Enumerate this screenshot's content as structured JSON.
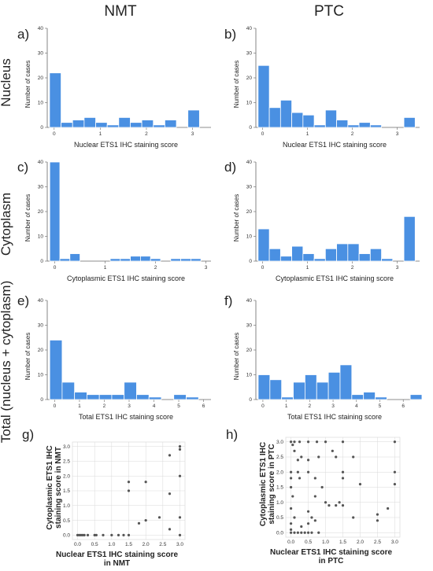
{
  "column_titles": [
    "NMT",
    "PTC"
  ],
  "row_titles": [
    "Nucleus",
    "Cytoplasm",
    "Total (nucleus + cytoplasm)"
  ],
  "colors": {
    "bar": "#4A90E2",
    "bar_edge": "#ffffff",
    "point": "#555555",
    "grid": "#d9d9d9",
    "axis": "#666666"
  },
  "chart_data": [
    {
      "panel": "a)",
      "type": "bar",
      "xlabel": "Nuclear ETS1 IHC staining score",
      "ylabel": "Number of cases",
      "xlim": [
        -0.15,
        3.4
      ],
      "ylim": [
        0,
        40
      ],
      "xticks": [
        0,
        1,
        2,
        3
      ],
      "yticks": [
        0,
        10,
        20,
        30,
        40
      ],
      "bin_start": -0.1,
      "bin_width": 0.25,
      "values": [
        22,
        2,
        3,
        4,
        2,
        1,
        4,
        2,
        3,
        1,
        3,
        0,
        7
      ]
    },
    {
      "panel": "b)",
      "type": "bar",
      "xlabel": "Nuclear ETS1 IHC staining score",
      "ylabel": "Number of cases",
      "xlim": [
        -0.15,
        3.5
      ],
      "ylim": [
        0,
        40
      ],
      "xticks": [
        0,
        1,
        2,
        3
      ],
      "yticks": [
        0,
        10,
        20,
        30,
        40
      ],
      "bin_start": -0.1,
      "bin_width": 0.25,
      "values": [
        25,
        8,
        11,
        6,
        5,
        1,
        7,
        3,
        1,
        2,
        1,
        0,
        0,
        4
      ]
    },
    {
      "panel": "c)",
      "type": "bar",
      "xlabel": "Cytoplasmic ETS1 IHC staining score",
      "ylabel": "Number of cases",
      "xlim": [
        -0.15,
        3.1
      ],
      "ylim": [
        0,
        40
      ],
      "xticks": [
        0,
        1,
        2,
        3
      ],
      "yticks": [
        0,
        10,
        20,
        30,
        40
      ],
      "bin_start": -0.1,
      "bin_width": 0.2,
      "values": [
        40,
        1,
        3,
        0,
        0,
        0,
        1,
        1,
        2,
        2,
        1,
        0,
        1,
        1,
        1
      ]
    },
    {
      "panel": "d)",
      "type": "bar",
      "xlabel": "Cytoplasmic ETS1 IHC staining score",
      "ylabel": "Number of cases",
      "xlim": [
        -0.15,
        3.5
      ],
      "ylim": [
        0,
        40
      ],
      "xticks": [
        0,
        1,
        2,
        3
      ],
      "yticks": [
        0,
        10,
        20,
        30,
        40
      ],
      "bin_start": -0.1,
      "bin_width": 0.25,
      "values": [
        13,
        5,
        2,
        6,
        3,
        1,
        5,
        7,
        7,
        3,
        5,
        1,
        0,
        18
      ]
    },
    {
      "panel": "e)",
      "type": "bar",
      "xlabel": "Total ETS1 IHC staining score",
      "ylabel": "Number of cases",
      "xlim": [
        -0.3,
        6.3
      ],
      "ylim": [
        0,
        40
      ],
      "xticks": [
        0,
        1,
        2,
        3,
        4,
        5,
        6
      ],
      "yticks": [
        0,
        10,
        20,
        30,
        40
      ],
      "bin_start": -0.2,
      "bin_width": 0.5,
      "values": [
        24,
        7,
        3,
        2,
        2,
        2,
        7,
        2,
        1,
        0,
        2,
        1
      ]
    },
    {
      "panel": "f)",
      "type": "bar",
      "xlabel": "Total ETS1 IHC staining score",
      "ylabel": "Number of cases",
      "xlim": [
        -0.3,
        6.7
      ],
      "ylim": [
        0,
        40
      ],
      "xticks": [
        0,
        1,
        2,
        3,
        4,
        5,
        6
      ],
      "yticks": [
        0,
        10,
        20,
        30,
        40
      ],
      "bin_start": -0.2,
      "bin_width": 0.5,
      "values": [
        10,
        8,
        1,
        7,
        10,
        7,
        11,
        14,
        2,
        3,
        1,
        0,
        0,
        2
      ]
    },
    {
      "panel": "g)",
      "type": "scatter",
      "xlabel": "Nuclear ETS1 IHC staining score in NMT",
      "ylabel": "Cytoplasmic ETS1 IHC staining score in NMT",
      "xlim": [
        -0.15,
        3.15
      ],
      "ylim": [
        -0.15,
        3.15
      ],
      "xticks": [
        0.0,
        0.5,
        1.0,
        1.5,
        2.0,
        2.5,
        3.0
      ],
      "yticks": [
        0.0,
        0.5,
        1.0,
        1.5,
        2.0,
        2.5,
        3.0
      ],
      "tick_labels": [
        "0.0",
        "0.5",
        "1.0",
        "1.5",
        "2.0",
        "2.5",
        "3.0"
      ],
      "points": [
        [
          0.0,
          0.0
        ],
        [
          0.05,
          0.0
        ],
        [
          0.1,
          0.0
        ],
        [
          0.15,
          0.0
        ],
        [
          0.2,
          0.0
        ],
        [
          0.3,
          0.0
        ],
        [
          0.5,
          0.0
        ],
        [
          0.55,
          0.0
        ],
        [
          0.75,
          0.0
        ],
        [
          1.0,
          0.0
        ],
        [
          1.2,
          0.0
        ],
        [
          1.35,
          0.0
        ],
        [
          1.5,
          0.0
        ],
        [
          1.5,
          1.8
        ],
        [
          1.5,
          1.5
        ],
        [
          1.8,
          0.4
        ],
        [
          2.0,
          1.8
        ],
        [
          2.0,
          0.5
        ],
        [
          2.4,
          0.6
        ],
        [
          2.7,
          2.7
        ],
        [
          2.7,
          1.4
        ],
        [
          2.7,
          0.2
        ],
        [
          3.0,
          3.0
        ],
        [
          3.0,
          2.9
        ],
        [
          3.0,
          2.0
        ],
        [
          3.0,
          0.6
        ],
        [
          3.0,
          0.0
        ]
      ]
    },
    {
      "panel": "h)",
      "type": "scatter",
      "xlabel": "Nuclear ETS1 IHC staining score in PTC",
      "ylabel": "Cytoplasmic ETS1 IHC staining score in PTC",
      "xlim": [
        -0.15,
        3.15
      ],
      "ylim": [
        -0.15,
        3.15
      ],
      "xticks": [
        0.0,
        0.5,
        1.0,
        1.5,
        2.0,
        2.5,
        3.0
      ],
      "yticks": [
        0.0,
        0.5,
        1.0,
        1.5,
        2.0,
        2.5,
        3.0
      ],
      "tick_labels": [
        "0.0",
        "0.5",
        "1.0",
        "1.5",
        "2.0",
        "2.5",
        "3.0"
      ],
      "points": [
        [
          0.0,
          3.0
        ],
        [
          0.1,
          3.0
        ],
        [
          0.25,
          3.0
        ],
        [
          0.5,
          3.0
        ],
        [
          0.75,
          3.0
        ],
        [
          1.0,
          3.0
        ],
        [
          1.5,
          3.0
        ],
        [
          3.0,
          3.0
        ],
        [
          0.05,
          2.9
        ],
        [
          0.1,
          2.7
        ],
        [
          0.2,
          2.4
        ],
        [
          0.0,
          2.0
        ],
        [
          0.0,
          1.8
        ],
        [
          0.0,
          1.5
        ],
        [
          0.05,
          1.2
        ],
        [
          0.0,
          0.8
        ],
        [
          0.1,
          0.5
        ],
        [
          0.0,
          0.3
        ],
        [
          0.0,
          0.1
        ],
        [
          0.0,
          0.0
        ],
        [
          0.1,
          0.0
        ],
        [
          0.2,
          0.0
        ],
        [
          0.3,
          0.0
        ],
        [
          0.4,
          0.0
        ],
        [
          0.5,
          0.0
        ],
        [
          0.6,
          0.0
        ],
        [
          0.8,
          0.0
        ],
        [
          0.3,
          0.2
        ],
        [
          0.5,
          0.3
        ],
        [
          0.6,
          0.5
        ],
        [
          0.7,
          0.4
        ],
        [
          0.5,
          0.7
        ],
        [
          0.2,
          2.0
        ],
        [
          0.3,
          2.5
        ],
        [
          0.25,
          1.8
        ],
        [
          0.5,
          2.0
        ],
        [
          0.5,
          2.4
        ],
        [
          0.7,
          1.8
        ],
        [
          0.8,
          2.5
        ],
        [
          0.9,
          1.5
        ],
        [
          0.7,
          1.2
        ],
        [
          1.0,
          1.0
        ],
        [
          1.1,
          0.9
        ],
        [
          1.2,
          2.7
        ],
        [
          1.3,
          2.5
        ],
        [
          1.5,
          2.0
        ],
        [
          1.5,
          1.8
        ],
        [
          1.4,
          1.0
        ],
        [
          1.5,
          0.9
        ],
        [
          1.8,
          2.5
        ],
        [
          1.8,
          0.5
        ],
        [
          2.0,
          1.6
        ],
        [
          2.5,
          0.6
        ],
        [
          2.5,
          0.4
        ],
        [
          2.8,
          0.8
        ],
        [
          3.0,
          2.0
        ],
        [
          3.0,
          1.6
        ],
        [
          1.3,
          0.9
        ]
      ]
    }
  ]
}
